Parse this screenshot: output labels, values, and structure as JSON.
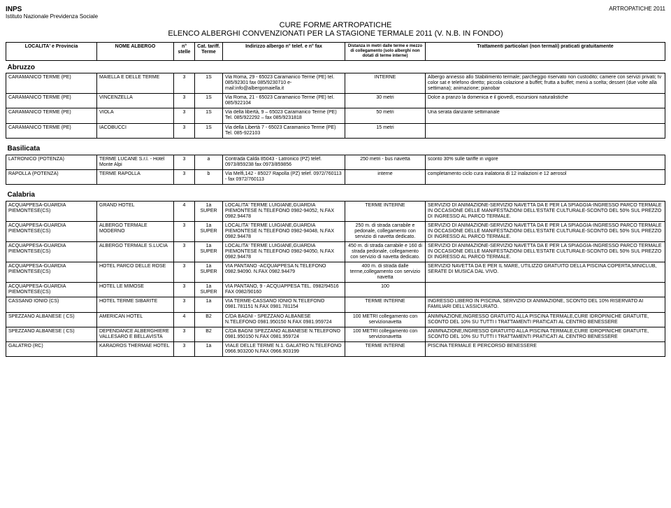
{
  "org": {
    "name": "INPS",
    "subtitle": "Istituto Nazionale Previdenza Sociale"
  },
  "doc_tag": "ARTROPATICHE 2011",
  "title_line1": "CURE FORME ARTROPATICHE",
  "title_line2": "ELENCO ALBERGHI CONVENZIONATI PER LA STAGIONE TERMALE 2011 (V. N.B. IN FONDO)",
  "headers": {
    "loc": "LOCALITA' e Provincia",
    "hotel": "NOME ALBERGO",
    "stars": "n° stelle",
    "cat": "Cat. tariff. Terme",
    "addr": "Indirizzo albergo\nn° telef. e n° fax",
    "dist": "Distanza in metri dalle terme e mezzo di collegamento (solo alberghi non dotati di terme interne)",
    "treat": "Trattamenti particolari (non termali) praticati gratuitamente"
  },
  "regions": [
    {
      "name": "Abruzzo",
      "rows": [
        {
          "loc": "CARAMANICO TERME (PE)",
          "hotel": "MAIELLA E DELLE TERME",
          "stars": "3",
          "cat": "1S",
          "addr": "Via Roma, 29 - 65023 Caramanico Terme (PE) tel. 085/92301 fax 085/9230710 e-mail:info@albergomaiella.it",
          "dist": "INTERNE",
          "treat": "Albergo annesso allo Stabilimento termale; parcheggio riservato non custodito; camere con servizi privati; tv color sat e telefono diretto; piccola colazione a buffet; frutta a buffet; menù a scelta; dessert (due volte alla settimana); animazione; pianobar"
        },
        {
          "loc": "CARAMANICO TERME (PE)",
          "hotel": "VINCENZELLA",
          "stars": "3",
          "cat": "1S",
          "addr": "Via Roma, 21 - 65023 Caramanico Terme (PE) tel. 085/922104",
          "dist": "30 metri",
          "treat": "Dolce a pranzo la domenica e il giovedì, escursioni naturalistiche"
        },
        {
          "loc": "CARAMANICO TERME (PE)",
          "hotel": "VIOLA",
          "stars": "3",
          "cat": "1S",
          "addr": "Via della libertà, 9 – 65023 Caramanico Terme (PE) Tel. 085/922292 – fax 085/9231818",
          "dist": "50 metri",
          "treat": "Una serata danzante settimanale"
        },
        {
          "loc": "CARAMANICO TERME (PE)",
          "hotel": "IACOBUCCI",
          "stars": "3",
          "cat": "1S",
          "addr": "Via della Libertà 7 - 65023 Caramanico Terme (PE) Tel. 085-922103",
          "dist": "15 metri",
          "treat": ""
        }
      ]
    },
    {
      "name": "Basilicata",
      "rows": [
        {
          "loc": "LATRONICO (POTENZA)",
          "hotel": "TERME LUCANE S.r.l. - Hotel Monte Alpi",
          "stars": "3",
          "cat": "a",
          "addr": "Contrada Calda 85043 - Latronico (PZ) telef. 0973/859238 fax 0973/859856",
          "dist": "250 metri - bus navetta",
          "treat": "sconto 30% sulle tariffe in vigore"
        },
        {
          "loc": "RAPOLLA (POTENZA)",
          "hotel": "TERME RAPOLLA",
          "stars": "3",
          "cat": "b",
          "addr": "Via Melfi,142 - 85027 Rapolla (PZ) telef. 0972/760113 - fax 0972/760113",
          "dist": "interne",
          "treat": "completamento ciclo cura inalatoria di 12 inalazioni e 12 aerosol"
        }
      ]
    },
    {
      "name": "Calabria",
      "rows": [
        {
          "loc": "ACQUAPPESA-GUARDIA PIEMONTESE(CS)",
          "hotel": "GRAND HOTEL",
          "stars": "4",
          "cat": "1a SUPER",
          "addr": "LOCALITA' TERME LUIGIANE,GUARDIA PIEMONTESE N.TELEFONO 0982-94052, N.FAX 0982.94478",
          "dist": "TERME INTERNE",
          "treat": "SERVIZIO DI ANIMAZIONE-SERVIZIO NAVETTA DA E PER LA SPIAGGIA-INGRESSO PARCO TERMALE IN OCCASIONE DELLE MANIFESTAZIONI DELL'ESTATE CULTURALE-SCONTO DEL 50% SUL PREZZO DI INGRESSO AL PARCO TERMALE."
        },
        {
          "loc": "ACQUAPPESA-GUARDIA PIEMONTESE(CS)",
          "hotel": "ALBERGO TERMALE MODERNO",
          "stars": "3",
          "cat": "1a SUPER",
          "addr": "LOCALITA' TERME LUIGIANE,GUARDIA PIEMONTESE N.TELEFONO 0982-94048, N.FAX 0982.94478",
          "dist": "250 m. di strada carrabile e pedonale, collegamento con servizio di navetta dedicato.",
          "treat": "SERVIZIO DI ANIMAZIONE-SERVIZIO NAVETTA DA E PER LA SPIAGGIA-INGRESSO PARCO TERMALE IN OCCASIONE DELLE MANIFESTAZIONI DELL'ESTATE CULTURALE-SCONTO DEL 50% SUL PREZZO DI INGRESSO AL PARCO TERMALE."
        },
        {
          "loc": "ACQUAPPESA-GUARDIA PIEMONTESE(CS)",
          "hotel": "ALBERGO TERMALE S.LUCIA",
          "stars": "3",
          "cat": "1a SUPER",
          "addr": "LOCALITA' TERME LUIGIANE,GUARDIA PIEMONTESE N.TELEFONO 0982-94050, N.FAX 0982.94478",
          "dist": "450 m. di strada carrabile e 160 di strada pedonale, collegamento con servizio di navetta dedicato.",
          "treat": "SERVIZIO DI ANIMAZIONE-SERVIZIO NAVETTA DA E PER LA SPIAGGIA-INGRESSO PARCO TERMALE IN OCCASIONE DELLE MANIFESTAZIONI DELL'ESTATE CULTURALE-SCONTO DEL 50% SUL PREZZO DI INGRESSO AL PARCO TERMALE."
        },
        {
          "loc": "ACQUAPPESA-GUARDIA PIEMONTESE(CS)",
          "hotel": "HOTEL PARCO DELLE ROSE",
          "stars": "3",
          "cat": "1a SUPER",
          "addr": "VIA PANTANO -ACQUAPPESA N.TELEFONO 0982.94090. N.FAX 0982.94479",
          "dist": "400 m. di strada dalle terme,collegamento con servizio navetta",
          "treat": "SERVIZIO NAVETTA DA E PER IL MARE, UTILIZZO GRATUITO DELLA PISCINA COPERTA,MINICLUB, SERATE DI MUSICA DAL VIVO."
        },
        {
          "loc": "ACQUAPPESA-GUARDIA PIEMONTESE(CS)",
          "hotel": "HOTEL LE MIMOSE",
          "stars": "3",
          "cat": "1a SUPER",
          "addr": "VIA PANTANO, 9 - ACQUAPPESA TEL. 0982/94516 FAX 0982/90160",
          "dist": "100",
          "treat": ""
        },
        {
          "loc": "CASSANO IONIO (CS)",
          "hotel": "HOTEL TERME SIBARITE",
          "stars": "3",
          "cat": "1a",
          "addr": "VIA TERME-CASSANO IONIO N.TELEFONO 0981.781151 N.FAX 0981.781154",
          "dist": "TERME INTERNE",
          "treat": "INGRESSO LIBERO IN PISCINA, SERVIZIO DI ANIMAZIONE, SCONTO DEL 10% RISERVATO AI FAMILIARI DELL'ASSICURATO."
        },
        {
          "loc": "SPEZZANO ALBANESE ( CS)",
          "hotel": "AMERICAN HOTEL",
          "stars": "4",
          "cat": "B2",
          "addr": "C/DA BAGNI - SPEZZANO ALBANESE N.TELEFONO 0981.950150 N.FAX 0981.959724",
          "dist": "100 METRI collegamento con servizionavetta",
          "treat": "ANIMNAZIONE,INGRESSO GRATUITO ALLA PISCINA TERMALE,CURE IDROPINICHE GRATUITE, SCONTO DEL 10% SU TUTTI I TRATTAMENTI PRATICATI AL CENTRO BENESSERE"
        },
        {
          "loc": "SPEZZANO ALBANESE ( CS)",
          "hotel": "DEPENDANCE ALBERGHIERE VALLESARO E BELLAVISTA",
          "stars": "3",
          "cat": "B2",
          "addr": "C/DA BAGNI SPEZZANO ALBANESE N.TELEFONO 0981.950150 N.FAX 0981.959724",
          "dist": "100 METRI collegamento con servizionavetta",
          "treat": "ANIMNAZIONE,INGRESSO GRATUITO ALLA PISCINA TERMALE,CURE IDROPINICHE GRATUITE, SCONTO DEL 10% SU TUTTI I TRATTAMENTI PRATICATI AL CENTRO BENESSERE"
        },
        {
          "loc": "GALATRO (RC)",
          "hotel": "KARADROS THERMAE HOTEL",
          "stars": "3",
          "cat": "1a",
          "addr": "VIALE DELLE TERME N.1. GALATRO N.TELEFONO 0966.903200 N.FAX 0966.903199",
          "dist": "TERME INTERNE",
          "treat": "PISCINA TERMALE E PERCORSO BENESSERE"
        }
      ]
    }
  ]
}
